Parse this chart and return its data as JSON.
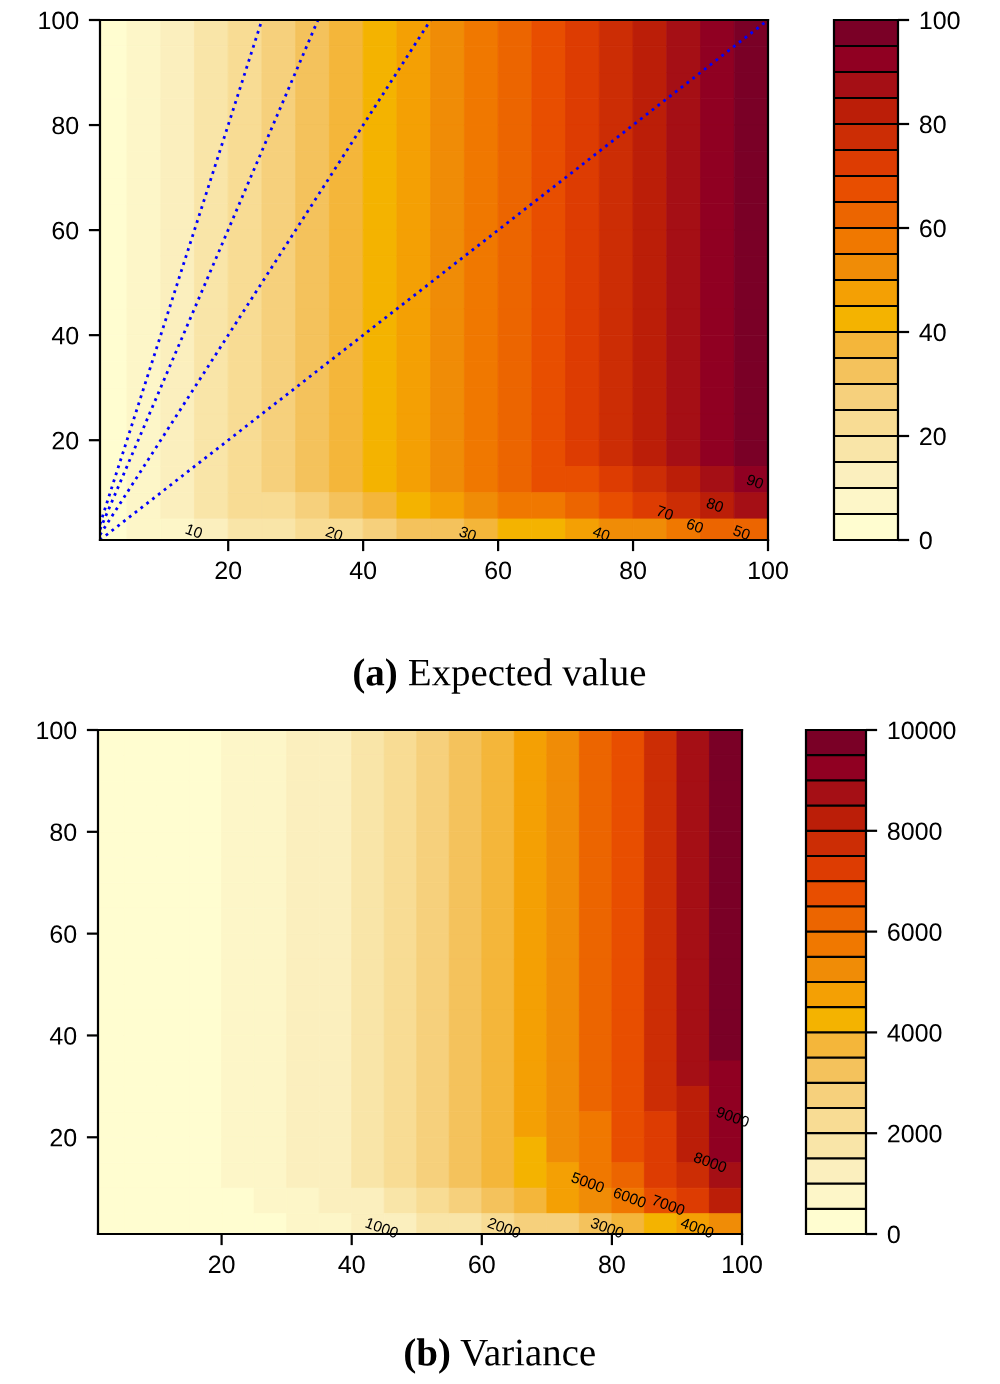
{
  "chart_data": [
    {
      "type": "heatmap",
      "title": "(a) Expected value",
      "xlim": [
        1,
        100
      ],
      "ylim": [
        1,
        100
      ],
      "xticks": [
        20,
        40,
        60,
        80,
        100
      ],
      "yticks": [
        20,
        40,
        60,
        80,
        100
      ],
      "clim": [
        0,
        100
      ],
      "cticks": [
        0,
        20,
        40,
        60,
        80,
        100
      ],
      "colors": [
        "#fffdd0",
        "#fdf6c8",
        "#fbefbe",
        "#f9e5a8",
        "#f8dc94",
        "#f6d07c",
        "#f4c25c",
        "#f4b63a",
        "#f4b300",
        "#f4a004",
        "#f08c06",
        "#f07800",
        "#ec6500",
        "#e84e00",
        "#dd3c02",
        "#cc2d05",
        "#bb1e08",
        "#a50f15",
        "#900022",
        "#7a0026"
      ],
      "x": [
        2.5,
        7.5,
        12.5,
        17.5,
        22.5,
        27.5,
        32.5,
        37.5,
        42.5,
        47.5,
        52.5,
        57.5,
        62.5,
        67.5,
        72.5,
        77.5,
        82.5,
        87.5,
        92.5,
        97.5
      ],
      "y": [
        97.5,
        92.5,
        87.5,
        82.5,
        77.5,
        72.5,
        67.5,
        62.5,
        57.5,
        52.5,
        47.5,
        42.5,
        37.5,
        32.5,
        27.5,
        22.5,
        17.5,
        12.5,
        7.5,
        2.5
      ],
      "cells": [
        [
          3,
          8,
          13,
          18,
          23,
          28,
          33,
          38,
          43,
          48,
          53,
          58,
          63,
          68,
          73,
          78,
          83,
          88,
          93,
          98
        ],
        [
          3,
          8,
          13,
          18,
          23,
          28,
          33,
          38,
          43,
          48,
          53,
          58,
          63,
          68,
          73,
          78,
          83,
          88,
          93,
          98
        ],
        [
          3,
          8,
          13,
          18,
          23,
          28,
          33,
          38,
          43,
          48,
          53,
          58,
          63,
          68,
          73,
          78,
          83,
          88,
          93,
          98
        ],
        [
          3,
          8,
          13,
          18,
          23,
          28,
          33,
          38,
          43,
          48,
          53,
          58,
          63,
          68,
          73,
          78,
          83,
          88,
          93,
          98
        ],
        [
          3,
          8,
          13,
          18,
          23,
          28,
          33,
          38,
          43,
          48,
          53,
          58,
          63,
          68,
          73,
          78,
          83,
          88,
          93,
          98
        ],
        [
          3,
          8,
          13,
          18,
          23,
          28,
          33,
          38,
          43,
          48,
          53,
          58,
          63,
          68,
          73,
          78,
          83,
          88,
          93,
          98
        ],
        [
          3,
          8,
          13,
          18,
          23,
          28,
          33,
          38,
          43,
          48,
          53,
          58,
          63,
          68,
          73,
          78,
          83,
          88,
          93,
          98
        ],
        [
          3,
          8,
          13,
          18,
          23,
          28,
          33,
          38,
          43,
          48,
          53,
          58,
          63,
          68,
          73,
          78,
          83,
          88,
          93,
          98
        ],
        [
          3,
          8,
          13,
          18,
          23,
          28,
          33,
          38,
          43,
          48,
          53,
          58,
          63,
          68,
          73,
          78,
          83,
          88,
          93,
          98
        ],
        [
          3,
          8,
          13,
          18,
          23,
          28,
          33,
          38,
          43,
          48,
          53,
          58,
          63,
          68,
          73,
          78,
          83,
          88,
          93,
          98
        ],
        [
          3,
          8,
          13,
          18,
          23,
          28,
          33,
          38,
          43,
          48,
          53,
          58,
          63,
          68,
          73,
          78,
          83,
          88,
          93,
          98
        ],
        [
          3,
          8,
          13,
          18,
          23,
          28,
          33,
          38,
          43,
          48,
          53,
          58,
          63,
          68,
          73,
          78,
          83,
          88,
          93,
          98
        ],
        [
          3,
          8,
          13,
          18,
          23,
          28,
          33,
          38,
          43,
          48,
          53,
          58,
          63,
          68,
          73,
          78,
          83,
          88,
          93,
          98
        ],
        [
          3,
          8,
          13,
          18,
          23,
          28,
          33,
          38,
          43,
          48,
          53,
          58,
          63,
          68,
          73,
          78,
          83,
          88,
          93,
          98
        ],
        [
          3,
          8,
          13,
          18,
          23,
          28,
          33,
          38,
          43,
          48,
          53,
          58,
          63,
          68,
          73,
          78,
          83,
          88,
          93,
          98
        ],
        [
          3,
          8,
          13,
          18,
          23,
          28,
          33,
          38,
          43,
          48,
          53,
          58,
          63,
          68,
          73,
          78,
          83,
          88,
          93,
          98
        ],
        [
          3,
          8,
          13,
          18,
          23,
          28,
          33,
          38,
          43,
          48,
          53,
          57,
          62,
          67,
          72,
          76,
          81,
          86,
          91,
          95
        ],
        [
          3,
          8,
          13,
          18,
          22,
          27,
          32,
          37,
          41,
          46,
          51,
          55,
          60,
          65,
          69,
          74,
          79,
          84,
          88,
          93
        ],
        [
          2,
          7,
          11,
          16,
          20,
          24,
          29,
          33,
          37,
          42,
          46,
          50,
          55,
          59,
          63,
          68,
          72,
          76,
          81,
          85
        ],
        [
          2,
          5,
          8,
          12,
          15,
          18,
          21,
          24,
          28,
          31,
          34,
          37,
          41,
          44,
          47,
          50,
          54,
          57,
          60,
          63
        ]
      ],
      "series": [
        {
          "type": "line",
          "color": "#0000ff",
          "line_style": "dotted",
          "x": [
            1,
            100
          ],
          "values": [
            1,
            100
          ]
        },
        {
          "type": "line",
          "color": "#0000ff",
          "line_style": "dotted",
          "x": [
            1,
            50
          ],
          "values": [
            2,
            100
          ]
        },
        {
          "type": "line",
          "color": "#0000ff",
          "line_style": "dotted",
          "x": [
            1,
            33.3
          ],
          "values": [
            3,
            100
          ]
        },
        {
          "type": "line",
          "color": "#0000ff",
          "line_style": "dotted",
          "x": [
            1,
            25
          ],
          "values": [
            4,
            100
          ]
        }
      ],
      "annotations": [
        "10",
        "20",
        "30",
        "40",
        "60",
        "50",
        "70",
        "80",
        "90"
      ]
    },
    {
      "type": "heatmap",
      "title": "(b) Variance",
      "xlim": [
        1,
        100
      ],
      "ylim": [
        1,
        100
      ],
      "xticks": [
        20,
        40,
        60,
        80,
        100
      ],
      "yticks": [
        20,
        40,
        60,
        80,
        100
      ],
      "clim": [
        0,
        10000
      ],
      "cticks": [
        0,
        2000,
        4000,
        6000,
        8000,
        10000
      ],
      "colors": [
        "#fffdd0",
        "#fdf6c8",
        "#fbefbe",
        "#f9e5a8",
        "#f8dc94",
        "#f6d07c",
        "#f4c25c",
        "#f4b63a",
        "#f4b300",
        "#f4a004",
        "#f08c06",
        "#f07800",
        "#ec6500",
        "#e84e00",
        "#dd3c02",
        "#cc2d05",
        "#bb1e08",
        "#a50f15",
        "#900022",
        "#7a0026"
      ],
      "x": [
        2.5,
        7.5,
        12.5,
        17.5,
        22.5,
        27.5,
        32.5,
        37.5,
        42.5,
        47.5,
        52.5,
        57.5,
        62.5,
        67.5,
        72.5,
        77.5,
        82.5,
        87.5,
        92.5,
        97.5
      ],
      "y": [
        97.5,
        92.5,
        87.5,
        82.5,
        77.5,
        72.5,
        67.5,
        62.5,
        57.5,
        52.5,
        47.5,
        42.5,
        37.5,
        32.5,
        27.5,
        22.5,
        17.5,
        12.5,
        7.5,
        2.5
      ],
      "cells": [
        [
          0,
          100,
          200,
          300,
          500,
          800,
          1100,
          1400,
          1800,
          2300,
          2800,
          3300,
          3900,
          4600,
          5300,
          6000,
          6800,
          7700,
          8600,
          9500
        ],
        [
          0,
          100,
          200,
          300,
          500,
          800,
          1100,
          1400,
          1800,
          2300,
          2800,
          3300,
          3900,
          4600,
          5300,
          6000,
          6800,
          7700,
          8600,
          9500
        ],
        [
          0,
          100,
          200,
          300,
          500,
          800,
          1100,
          1400,
          1800,
          2300,
          2800,
          3300,
          3900,
          4600,
          5300,
          6000,
          6800,
          7700,
          8600,
          9500
        ],
        [
          0,
          100,
          200,
          300,
          500,
          800,
          1100,
          1400,
          1800,
          2300,
          2800,
          3300,
          3900,
          4600,
          5300,
          6000,
          6800,
          7700,
          8600,
          9500
        ],
        [
          0,
          100,
          200,
          300,
          500,
          800,
          1100,
          1400,
          1800,
          2300,
          2800,
          3300,
          3900,
          4600,
          5300,
          6000,
          6800,
          7700,
          8600,
          9500
        ],
        [
          0,
          100,
          200,
          300,
          500,
          800,
          1100,
          1400,
          1800,
          2300,
          2800,
          3300,
          3900,
          4600,
          5300,
          6000,
          6800,
          7700,
          8600,
          9500
        ],
        [
          0,
          100,
          200,
          300,
          500,
          800,
          1100,
          1400,
          1800,
          2300,
          2800,
          3300,
          3900,
          4600,
          5300,
          6000,
          6800,
          7700,
          8600,
          9500
        ],
        [
          0,
          100,
          200,
          300,
          500,
          800,
          1100,
          1400,
          1800,
          2300,
          2800,
          3300,
          3900,
          4600,
          5300,
          6000,
          6800,
          7700,
          8600,
          9500
        ],
        [
          0,
          100,
          200,
          300,
          500,
          800,
          1100,
          1400,
          1800,
          2300,
          2800,
          3300,
          3900,
          4600,
          5300,
          6000,
          6800,
          7700,
          8600,
          9500
        ],
        [
          0,
          100,
          200,
          300,
          500,
          800,
          1100,
          1400,
          1800,
          2300,
          2800,
          3300,
          3900,
          4600,
          5300,
          6000,
          6800,
          7700,
          8600,
          9500
        ],
        [
          0,
          100,
          200,
          300,
          500,
          800,
          1100,
          1400,
          1800,
          2300,
          2800,
          3300,
          3900,
          4600,
          5300,
          6000,
          6800,
          7700,
          8600,
          9500
        ],
        [
          0,
          100,
          200,
          300,
          500,
          800,
          1100,
          1400,
          1800,
          2300,
          2800,
          3300,
          3900,
          4600,
          5300,
          6000,
          6800,
          7700,
          8600,
          9500
        ],
        [
          0,
          100,
          200,
          300,
          500,
          800,
          1100,
          1400,
          1800,
          2300,
          2800,
          3300,
          3900,
          4600,
          5300,
          6000,
          6800,
          7700,
          8600,
          9500
        ],
        [
          0,
          100,
          200,
          300,
          500,
          800,
          1100,
          1400,
          1800,
          2300,
          2800,
          3300,
          3900,
          4600,
          5300,
          6000,
          6800,
          7700,
          8500,
          9400
        ],
        [
          0,
          100,
          200,
          300,
          500,
          800,
          1100,
          1400,
          1800,
          2300,
          2800,
          3300,
          3900,
          4600,
          5300,
          6000,
          6700,
          7500,
          8400,
          9300
        ],
        [
          0,
          100,
          200,
          300,
          500,
          800,
          1100,
          1400,
          1800,
          2300,
          2800,
          3300,
          3900,
          4500,
          5100,
          5800,
          6600,
          7400,
          8300,
          9200
        ],
        [
          0,
          100,
          200,
          300,
          500,
          800,
          1100,
          1400,
          1700,
          2200,
          2700,
          3100,
          3700,
          4400,
          5000,
          5700,
          6500,
          7300,
          8200,
          9000
        ],
        [
          0,
          100,
          200,
          300,
          500,
          700,
          1000,
          1300,
          1700,
          2100,
          2500,
          3000,
          3600,
          4200,
          4900,
          5500,
          6300,
          7000,
          7900,
          8700
        ],
        [
          0,
          0,
          100,
          200,
          400,
          600,
          800,
          1100,
          1400,
          1900,
          2300,
          2800,
          3300,
          3900,
          4500,
          5200,
          5900,
          6700,
          7400,
          8300
        ],
        [
          0,
          0,
          100,
          200,
          300,
          400,
          600,
          800,
          1000,
          1200,
          1500,
          1800,
          2100,
          2500,
          2900,
          3300,
          3700,
          4200,
          4700,
          5200
        ]
      ],
      "annotations": [
        "1000",
        "2000",
        "3000",
        "4000",
        "5000",
        "6000",
        "7000",
        "8000",
        "9000"
      ]
    }
  ]
}
